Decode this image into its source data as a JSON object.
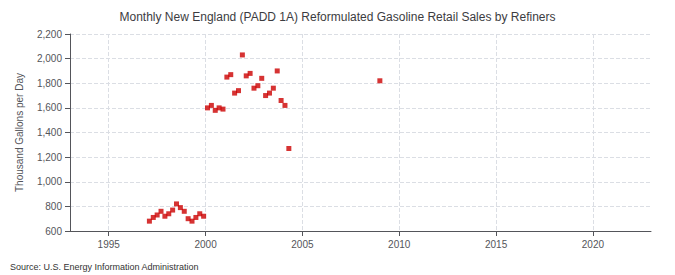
{
  "chart_data": {
    "type": "scatter",
    "title": "Monthly New England (PADD 1A) Reformulated Gasoline Retail Sales by Refiners",
    "ylabel": "Thousand Gallons per Day",
    "annotation": "Source: U.S. Energy Information Administration",
    "color": "#cc0000",
    "marker": "square",
    "grid": true,
    "xlim": [
      1993,
      2023
    ],
    "xticks": [
      1995,
      2000,
      2005,
      2010,
      2015,
      2020
    ],
    "ylim": [
      600,
      2200
    ],
    "yticks": [
      600,
      800,
      {
        "value": 1000,
        "label": "1,000"
      },
      {
        "value": 1200,
        "label": "1,200"
      },
      {
        "value": 1400,
        "label": "1,400"
      },
      {
        "value": 1600,
        "label": "1,600"
      },
      {
        "value": 1800,
        "label": "1,800"
      },
      {
        "value": 2000,
        "label": "2,000"
      },
      {
        "value": 2200,
        "label": "2,200"
      }
    ],
    "x": [
      1997.1,
      1997.3,
      1997.5,
      1997.7,
      1997.9,
      1998.1,
      1998.3,
      1998.5,
      1998.7,
      1998.9,
      1999.1,
      1999.3,
      1999.5,
      1999.7,
      1999.9,
      2000.1,
      2000.3,
      2000.5,
      2000.7,
      2000.9,
      2001.1,
      2001.3,
      2001.5,
      2001.7,
      2001.9,
      2002.1,
      2002.3,
      2002.5,
      2002.7,
      2002.9,
      2003.1,
      2003.3,
      2003.5,
      2003.7,
      2003.9,
      2004.1,
      2004.3,
      2009.0
    ],
    "values": [
      680,
      710,
      730,
      760,
      720,
      740,
      770,
      820,
      790,
      760,
      700,
      680,
      710,
      740,
      720,
      1600,
      1620,
      1580,
      1600,
      1590,
      1850,
      1870,
      1720,
      1740,
      2030,
      1860,
      1880,
      1760,
      1780,
      1840,
      1700,
      1720,
      1760,
      1900,
      1660,
      1620,
      1270,
      1820
    ]
  }
}
